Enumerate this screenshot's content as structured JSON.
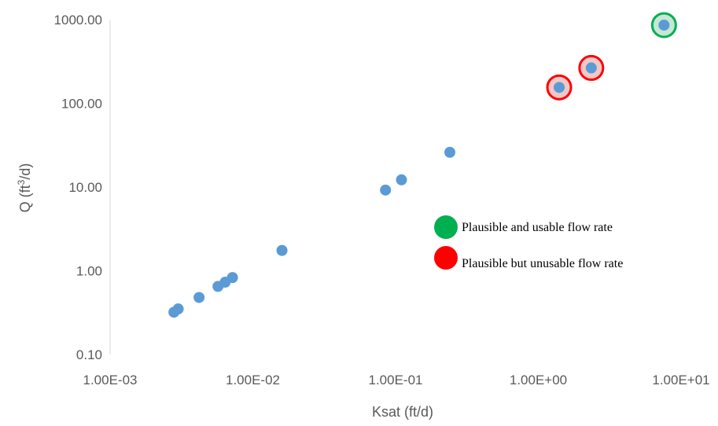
{
  "chart_data": {
    "type": "scatter",
    "xlabel": "Ksat (ft/d)",
    "ylabel_prefix": "Q (ft",
    "ylabel_sup": "3",
    "ylabel_suffix": "/d)",
    "x_scale": "log",
    "y_scale": "log",
    "xlim": [
      0.001,
      10
    ],
    "ylim": [
      0.1,
      1000
    ],
    "x_ticks": [
      0.001,
      0.01,
      0.1,
      1,
      10
    ],
    "x_tick_labels": [
      "1.00E-03",
      "1.00E-02",
      "1.00E-01",
      "1.00E+00",
      "1.00E+01"
    ],
    "y_ticks": [
      0.1,
      1,
      10,
      100,
      1000
    ],
    "y_tick_labels": [
      "0.10",
      "1.00",
      "10.00",
      "100.00",
      "1000.00"
    ],
    "grid": false,
    "series": [
      {
        "color": "#5b9bd5",
        "points": [
          {
            "x": 0.0028,
            "y": 0.32
          },
          {
            "x": 0.003,
            "y": 0.35
          },
          {
            "x": 0.0042,
            "y": 0.48
          },
          {
            "x": 0.0057,
            "y": 0.65
          },
          {
            "x": 0.0064,
            "y": 0.73
          },
          {
            "x": 0.0072,
            "y": 0.83
          },
          {
            "x": 0.016,
            "y": 1.75
          },
          {
            "x": 0.085,
            "y": 9.2
          },
          {
            "x": 0.11,
            "y": 12.2
          },
          {
            "x": 0.24,
            "y": 26
          },
          {
            "x": 1.4,
            "y": 155
          },
          {
            "x": 2.35,
            "y": 265
          },
          {
            "x": 7.6,
            "y": 860
          }
        ]
      }
    ],
    "highlights": [
      {
        "x": 1.4,
        "y": 155,
        "category": "unusable"
      },
      {
        "x": 2.35,
        "y": 265,
        "category": "unusable"
      },
      {
        "x": 7.6,
        "y": 860,
        "category": "usable"
      }
    ],
    "legend": [
      {
        "key": "usable",
        "label": "Plausible and usable flow rate",
        "color": "#00b050",
        "fill": "#c6e7d4"
      },
      {
        "key": "unusable",
        "label": "Plausible but unusable flow rate",
        "color": "#ff0000",
        "fill": "#f2c7c7"
      }
    ]
  }
}
